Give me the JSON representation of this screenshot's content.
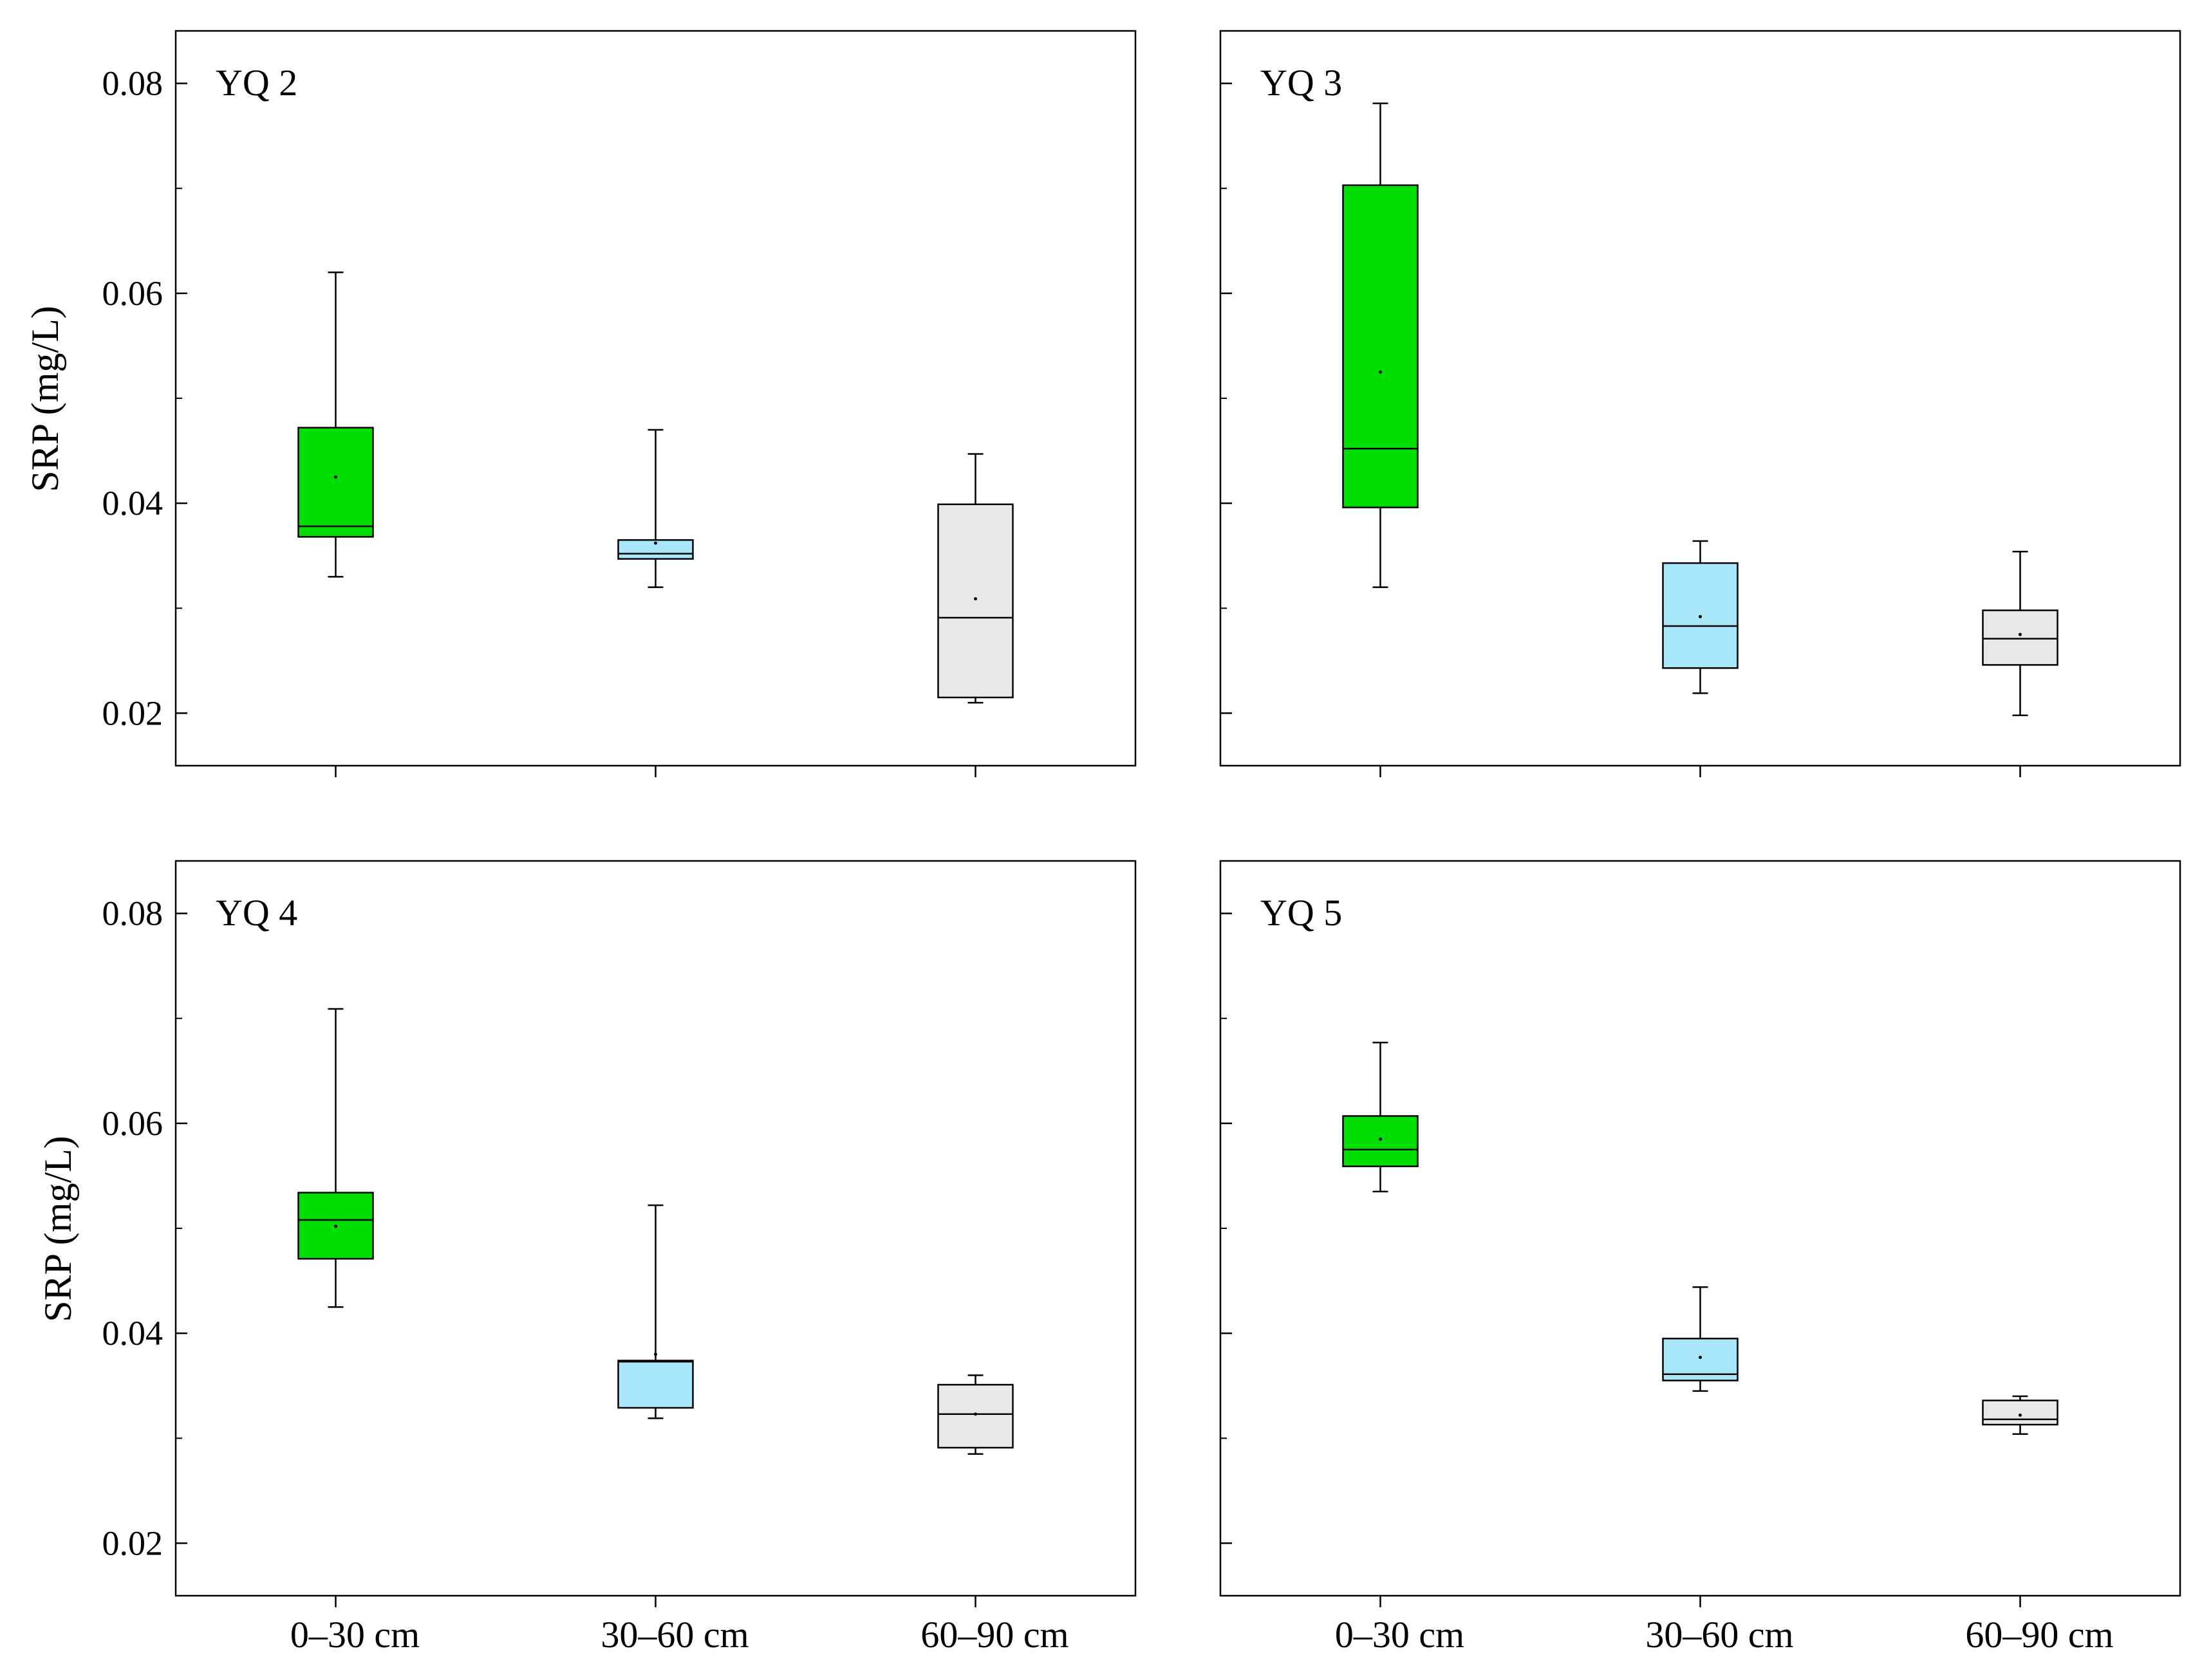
{
  "chart_data": [
    {
      "type": "box",
      "title": "YQ 2",
      "ylabel": "SRP (mg/L)",
      "xlabel": "",
      "ylim": [
        0.015,
        0.085
      ],
      "yticks": [
        0.02,
        0.04,
        0.06,
        0.08
      ],
      "ytick_labels": [
        "0.02",
        "0.04",
        "0.06",
        "0.08"
      ],
      "categories": [
        "0–30 cm",
        "30–60 cm",
        "60–90 cm"
      ],
      "boxes": [
        {
          "category": "0–30 cm",
          "min": 0.033,
          "q1": 0.0368,
          "median": 0.0378,
          "q3": 0.0472,
          "max": 0.062,
          "mean": 0.0425,
          "color": "#00dd00"
        },
        {
          "category": "30–60 cm",
          "min": 0.032,
          "q1": 0.0347,
          "median": 0.0352,
          "q3": 0.0365,
          "max": 0.047,
          "mean": 0.0362,
          "color": "#a8e6fa"
        },
        {
          "category": "60–90 cm",
          "min": 0.021,
          "q1": 0.0215,
          "median": 0.0291,
          "q3": 0.0399,
          "max": 0.0447,
          "mean": 0.0309,
          "color": "#e8e8e8"
        }
      ]
    },
    {
      "type": "box",
      "title": "YQ 3",
      "ylabel": "",
      "xlabel": "",
      "ylim": [
        0.015,
        0.085
      ],
      "yticks": [
        0.02,
        0.04,
        0.06,
        0.08
      ],
      "ytick_labels": [],
      "categories": [
        "0–30 cm",
        "30–60 cm",
        "60–90 cm"
      ],
      "boxes": [
        {
          "category": "0–30 cm",
          "min": 0.032,
          "q1": 0.0396,
          "median": 0.0452,
          "q3": 0.0703,
          "max": 0.0781,
          "mean": 0.0525,
          "color": "#00dd00"
        },
        {
          "category": "30–60 cm",
          "min": 0.0219,
          "q1": 0.0243,
          "median": 0.0283,
          "q3": 0.0343,
          "max": 0.0364,
          "mean": 0.0292,
          "color": "#a8e6fa"
        },
        {
          "category": "60–90 cm",
          "min": 0.0198,
          "q1": 0.0246,
          "median": 0.0271,
          "q3": 0.0298,
          "max": 0.0354,
          "mean": 0.0275,
          "color": "#e8e8e8"
        }
      ]
    },
    {
      "type": "box",
      "title": "YQ 4",
      "ylabel": "SRP (mg/L)",
      "xlabel": "",
      "ylim": [
        0.015,
        0.085
      ],
      "yticks": [
        0.02,
        0.04,
        0.06,
        0.08
      ],
      "ytick_labels": [
        "0.02",
        "0.04",
        "0.06",
        "0.08"
      ],
      "categories": [
        "0–30 cm",
        "30–60 cm",
        "60–90 cm"
      ],
      "boxes": [
        {
          "category": "0–30 cm",
          "min": 0.0425,
          "q1": 0.0471,
          "median": 0.0508,
          "q3": 0.0534,
          "max": 0.0709,
          "mean": 0.0502,
          "color": "#00dd00"
        },
        {
          "category": "30–60 cm",
          "min": 0.0319,
          "q1": 0.0329,
          "median": 0.0373,
          "q3": 0.0374,
          "max": 0.0522,
          "mean": 0.038,
          "color": "#a8e6fa"
        },
        {
          "category": "60–90 cm",
          "min": 0.0285,
          "q1": 0.0291,
          "median": 0.0323,
          "q3": 0.0351,
          "max": 0.036,
          "mean": 0.0323,
          "color": "#e8e8e8"
        }
      ]
    },
    {
      "type": "box",
      "title": "YQ 5",
      "ylabel": "",
      "xlabel": "",
      "ylim": [
        0.015,
        0.085
      ],
      "yticks": [
        0.02,
        0.04,
        0.06,
        0.08
      ],
      "ytick_labels": [],
      "categories": [
        "0–30 cm",
        "30–60 cm",
        "60–90 cm"
      ],
      "boxes": [
        {
          "category": "0–30 cm",
          "min": 0.0535,
          "q1": 0.0559,
          "median": 0.0575,
          "q3": 0.0607,
          "max": 0.0677,
          "mean": 0.0585,
          "color": "#00dd00"
        },
        {
          "category": "30–60 cm",
          "min": 0.0345,
          "q1": 0.0355,
          "median": 0.0361,
          "q3": 0.0395,
          "max": 0.0444,
          "mean": 0.0377,
          "color": "#a8e6fa"
        },
        {
          "category": "60–90 cm",
          "min": 0.0304,
          "q1": 0.0313,
          "median": 0.0318,
          "q3": 0.0336,
          "max": 0.034,
          "mean": 0.0322,
          "color": "#e8e8e8"
        }
      ]
    }
  ]
}
